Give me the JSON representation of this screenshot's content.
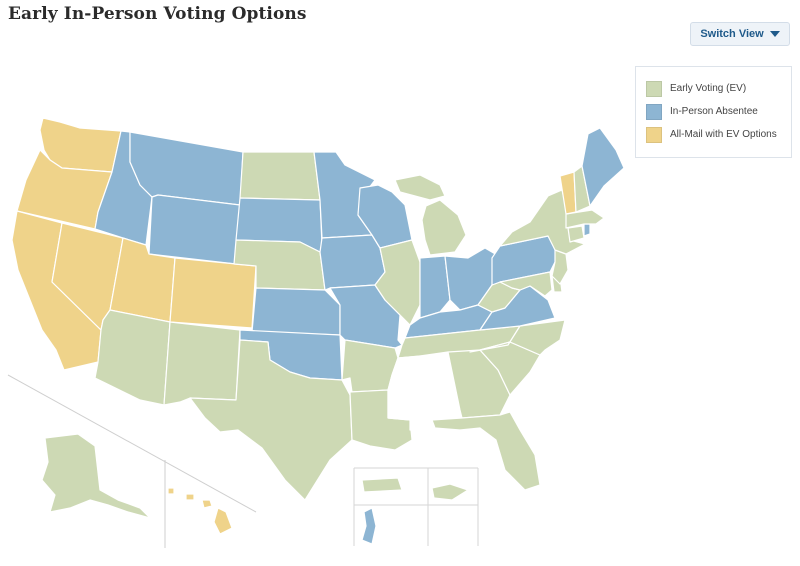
{
  "header": {
    "title": "Early In-Person Voting Options"
  },
  "controls": {
    "switch_view_label": "Switch View"
  },
  "colors": {
    "ev": "#cdd9b4",
    "absentee": "#8db5d3",
    "allmail": "#efd38a",
    "none": "#ffffff"
  },
  "legend": {
    "items": [
      {
        "label": "Early Voting (EV)",
        "key": "ev"
      },
      {
        "label": "In-Person Absentee",
        "key": "absentee"
      },
      {
        "label": "All-Mail with EV Options",
        "key": "allmail"
      }
    ]
  },
  "states": {
    "WA": "allmail",
    "OR": "allmail",
    "CA": "allmail",
    "NV": "allmail",
    "UT": "allmail",
    "CO": "allmail",
    "HI": "allmail",
    "VT": "allmail",
    "ID": "absentee",
    "MT": "absentee",
    "WY": "absentee",
    "SD": "absentee",
    "MN": "absentee",
    "WI": "absentee",
    "IA": "absentee",
    "MO": "absentee",
    "KS": "absentee",
    "OK": "absentee",
    "IN": "absentee",
    "OH": "absentee",
    "KY": "absentee",
    "VA": "absentee",
    "PA": "absentee",
    "ME": "absentee",
    "RI": "absentee",
    "GU": "absentee",
    "ND": "ev",
    "NE": "ev",
    "AZ": "ev",
    "NM": "ev",
    "TX": "ev",
    "AR": "ev",
    "LA": "ev",
    "IL": "ev",
    "MI": "ev",
    "TN": "ev",
    "GA": "ev",
    "FL": "ev",
    "SC": "ev",
    "NC": "ev",
    "WV": "ev",
    "MD": "ev",
    "DE": "ev",
    "NJ": "ev",
    "NY": "ev",
    "CT": "ev",
    "MA": "ev",
    "NH": "ev",
    "AK": "ev",
    "PR": "ev",
    "VI": "ev",
    "MS": "none",
    "AL": "none",
    "AS": "none",
    "MP": "none"
  }
}
